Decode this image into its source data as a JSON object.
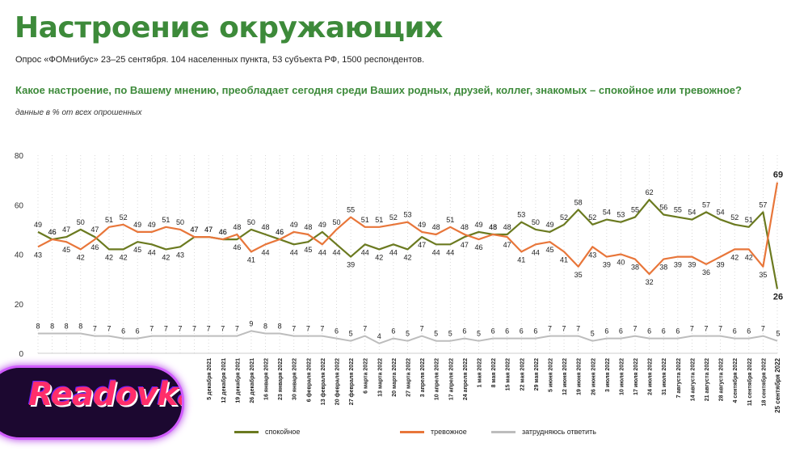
{
  "header": {
    "title": "Настроение окружающих",
    "survey": "Опрос «ФОМнибус» 23–25 сентября. 104 населенных пункта, 53 субъекта РФ, 1500 респондентов.",
    "question": "Какое настроение, по Вашему мнению, преобладает сегодня среди Ваших родных, друзей, коллег, знакомых – спокойное или тревожное?",
    "units": "данные в % от всех опрошенных"
  },
  "logo": {
    "text": "Readovka"
  },
  "chart_data": {
    "type": "line",
    "ylim": [
      0,
      80
    ],
    "yticks": [
      "0",
      "20",
      "40",
      "60",
      "80"
    ],
    "grid": "vertical dotted",
    "legend_position": "bottom",
    "categories": [
      "",
      "",
      "",
      "",
      "",
      "",
      "",
      "",
      "",
      "",
      "",
      "",
      "5 декабря 2021",
      "12 декабря 2021",
      "19 декабря 2021",
      "26 декабря 2021",
      "16 января 2022",
      "23 января 2022",
      "30 января 2022",
      "6 февраля 2022",
      "13 февраля 2022",
      "20 февраля 2022",
      "27 февраля 2022",
      "6 марта 2022",
      "13 марта 2022",
      "20 марта 2022",
      "27 марта 2022",
      "3 апреля 2022",
      "10 апреля 2022",
      "17 апреля 2022",
      "24 апреля 2022",
      "1 мая 2022",
      "8 мая 2022",
      "15 мая 2022",
      "22 мая 2022",
      "29 мая 2022",
      "5 июня 2022",
      "12 июня 2022",
      "19 июня 2022",
      "26 июня 2022",
      "3 июля 2022",
      "10 июля 2022",
      "17 июля 2022",
      "24 июля 2022",
      "31 июля 2022",
      "7 августа 2022",
      "14 августа 2022",
      "21 августа 2022",
      "28 августа 2022",
      "4 сентября 2022",
      "11 сентября 2022",
      "18 сентября 2022",
      "25 сентября 2022"
    ],
    "series": [
      {
        "name": "спокойное",
        "color": "#6b7a20",
        "values": [
          49,
          46,
          47,
          50,
          47,
          42,
          42,
          45,
          44,
          42,
          43,
          47,
          47,
          46,
          46,
          50,
          48,
          46,
          44,
          45,
          49,
          44,
          39,
          44,
          42,
          44,
          42,
          47,
          44,
          44,
          47,
          49,
          48,
          48,
          53,
          50,
          49,
          52,
          58,
          52,
          54,
          53,
          55,
          62,
          56,
          55,
          54,
          57,
          54,
          52,
          51,
          57,
          26
        ]
      },
      {
        "name": "тревожное",
        "color": "#e8763a",
        "values": [
          43,
          46,
          45,
          42,
          46,
          51,
          52,
          49,
          49,
          51,
          50,
          47,
          47,
          46,
          48,
          41,
          44,
          46,
          49,
          48,
          44,
          50,
          55,
          51,
          51,
          52,
          53,
          49,
          48,
          51,
          48,
          46,
          48,
          47,
          41,
          44,
          45,
          41,
          35,
          43,
          39,
          40,
          38,
          32,
          38,
          39,
          39,
          36,
          39,
          42,
          42,
          35,
          69
        ]
      },
      {
        "name": "затрудняюсь ответить",
        "color": "#bdbdbd",
        "values": [
          8,
          8,
          8,
          8,
          7,
          7,
          6,
          6,
          7,
          7,
          7,
          7,
          7,
          7,
          7,
          9,
          8,
          8,
          7,
          7,
          7,
          6,
          5,
          7,
          4,
          6,
          5,
          7,
          5,
          5,
          6,
          5,
          6,
          6,
          6,
          6,
          7,
          7,
          7,
          5,
          6,
          6,
          7,
          6,
          6,
          6,
          7,
          7,
          7,
          6,
          6,
          7,
          5
        ]
      }
    ]
  }
}
